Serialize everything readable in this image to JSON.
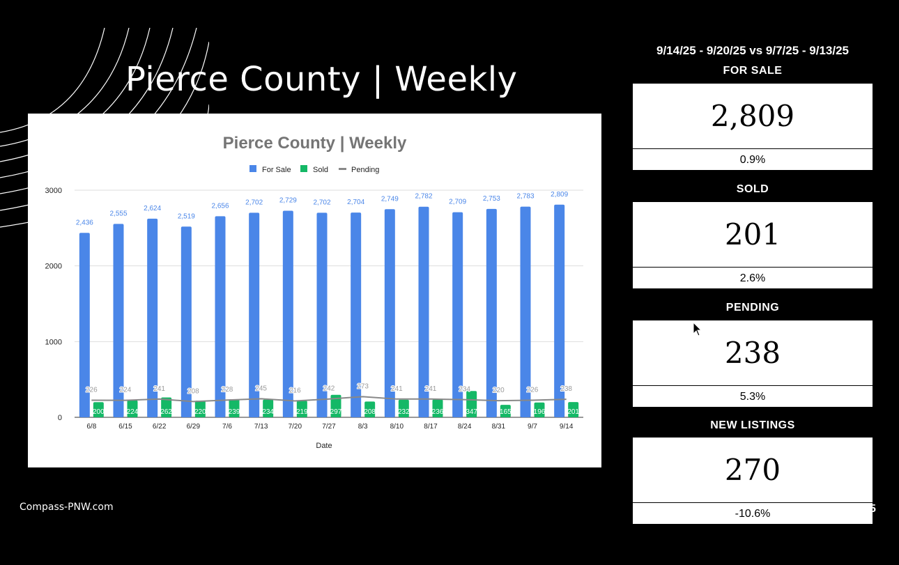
{
  "slide": {
    "title": "Pierce County | Weekly",
    "footer": "Compass-PNW.com",
    "stray_mark": "5"
  },
  "comparison": {
    "header": "9/14/25 - 9/20/25 vs 9/7/25 - 9/13/25",
    "metrics": [
      {
        "label": "FOR SALE",
        "value": "2,809",
        "change": "0.9%"
      },
      {
        "label": "SOLD",
        "value": "201",
        "change": "2.6%"
      },
      {
        "label": "PENDING",
        "value": "238",
        "change": "5.3%"
      },
      {
        "label": "NEW LISTINGS",
        "value": "270",
        "change": "-10.6%"
      }
    ]
  },
  "chart_data": {
    "type": "bar",
    "title": "Pierce County | Weekly",
    "xlabel": "Date",
    "ylabel": "",
    "ylim": [
      0,
      3000
    ],
    "yticks": [
      0,
      1000,
      2000,
      3000
    ],
    "grid": true,
    "legend": "top",
    "categories": [
      "6/8",
      "6/15",
      "6/22",
      "6/29",
      "7/6",
      "7/13",
      "7/20",
      "7/27",
      "8/3",
      "8/10",
      "8/17",
      "8/24",
      "8/31",
      "9/7",
      "9/14"
    ],
    "series": [
      {
        "name": "For Sale",
        "kind": "bar",
        "color": "#4a86e8",
        "values": [
          2436,
          2555,
          2624,
          2519,
          2656,
          2702,
          2729,
          2702,
          2704,
          2749,
          2782,
          2709,
          2753,
          2783,
          2809
        ],
        "labels": [
          "2,436",
          "2,555",
          "2,624",
          "2,519",
          "2,656",
          "2,702",
          "2,729",
          "2,702",
          "2,704",
          "2,749",
          "2,782",
          "2,709",
          "2,753",
          "2,783",
          "2,809"
        ]
      },
      {
        "name": "Sold",
        "kind": "bar",
        "color": "#14b866",
        "values": [
          200,
          224,
          262,
          220,
          239,
          234,
          219,
          297,
          208,
          232,
          236,
          347,
          165,
          196,
          201
        ],
        "labels": [
          "200",
          "224",
          "262",
          "220",
          "239",
          "234",
          "219",
          "297",
          "208",
          "232",
          "236",
          "347",
          "165",
          "196",
          "201"
        ]
      },
      {
        "name": "Pending",
        "kind": "line",
        "color": "#888888",
        "values": [
          226,
          224,
          241,
          208,
          228,
          245,
          216,
          242,
          273,
          241,
          241,
          234,
          220,
          226,
          238
        ],
        "labels": [
          "226",
          "224",
          "241",
          "208",
          "228",
          "245",
          "216",
          "242",
          "273",
          "241",
          "241",
          "234",
          "220",
          "226",
          "238"
        ]
      }
    ]
  }
}
